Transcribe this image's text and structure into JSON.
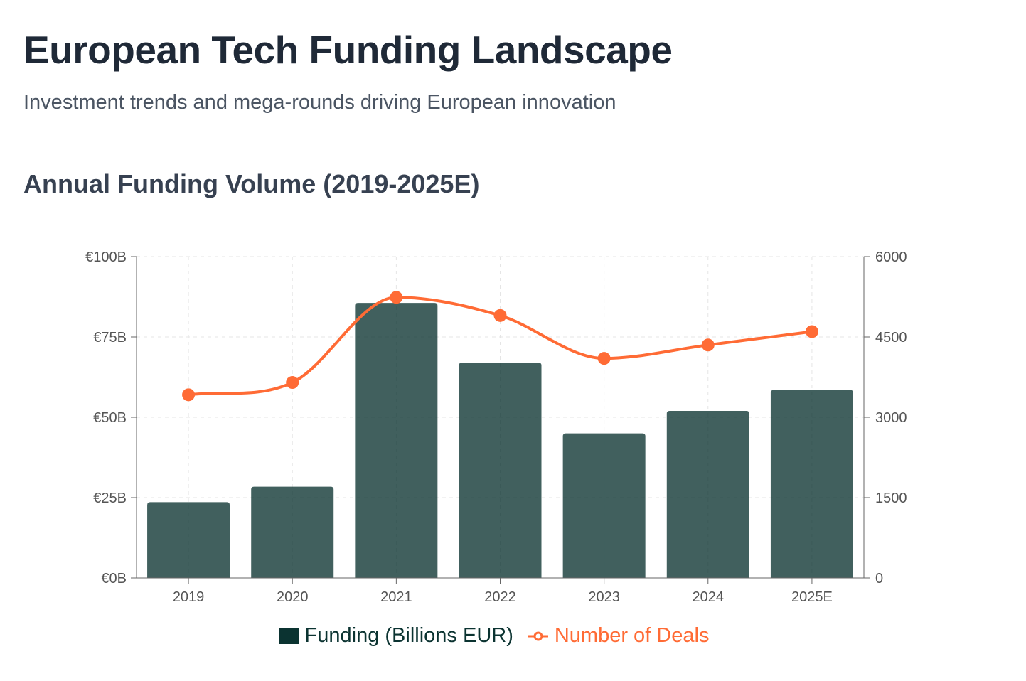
{
  "header": {
    "title": "European Tech Funding Landscape",
    "subtitle": "Investment trends and mega-rounds driving European innovation"
  },
  "chart_data": {
    "type": "bar",
    "title": "Annual Funding Volume (2019-2025E)",
    "categories": [
      "2019",
      "2020",
      "2021",
      "2022",
      "2023",
      "2024",
      "2025E"
    ],
    "series": [
      {
        "name": "Funding (Billions EUR)",
        "type": "bar",
        "axis": "left",
        "color": "#0b3331",
        "values": [
          23.6,
          28.4,
          85.6,
          67,
          45,
          52,
          58.5
        ]
      },
      {
        "name": "Number of Deals",
        "type": "line",
        "axis": "right",
        "color": "#ff6b35",
        "values": [
          3420,
          3650,
          5240,
          4900,
          4100,
          4350,
          4600
        ]
      }
    ],
    "y_left": {
      "range": [
        0,
        100
      ],
      "ticks": [
        "€0B",
        "€25B",
        "€50B",
        "€75B",
        "€100B"
      ]
    },
    "y_right": {
      "range": [
        0,
        6000
      ],
      "ticks": [
        "0",
        "1500",
        "3000",
        "4500",
        "6000"
      ]
    },
    "grid": true,
    "legend": "bottom"
  }
}
